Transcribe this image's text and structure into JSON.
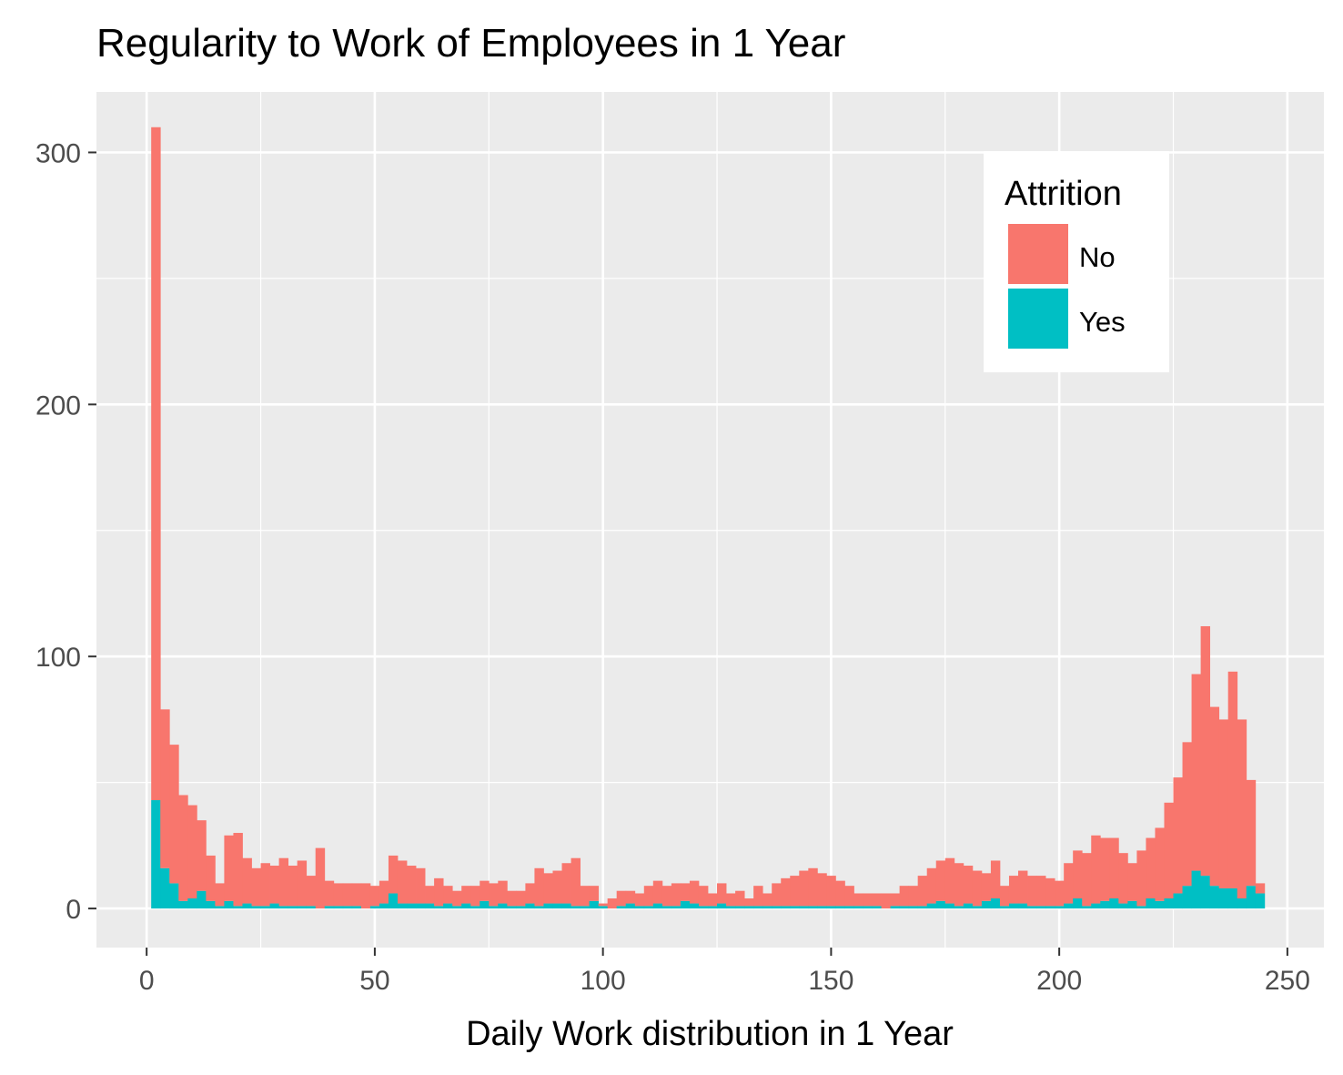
{
  "chart_data": {
    "type": "bar",
    "subtype": "stacked-histogram",
    "title": "Regularity to Work of Employees in 1 Year",
    "xlabel": "Daily Work distribution in 1 Year",
    "ylabel": "",
    "xlim": [
      -11,
      258
    ],
    "ylim": [
      -15.5,
      324
    ],
    "x_ticks": [
      0,
      50,
      100,
      150,
      200,
      250
    ],
    "y_ticks": [
      0,
      100,
      200,
      300
    ],
    "grid": true,
    "legend": {
      "title": "Attrition",
      "position": "top-right",
      "entries": [
        "No",
        "Yes"
      ]
    },
    "colors": {
      "No": "#F8766D",
      "Yes": "#00BFC4",
      "panel": "#EBEBEB",
      "grid": "#FFFFFF"
    },
    "bin_width": 2,
    "bins_start": [
      1,
      3,
      5,
      7,
      9,
      11,
      13,
      15,
      17,
      19,
      21,
      23,
      25,
      27,
      29,
      31,
      33,
      35,
      37,
      39,
      41,
      43,
      45,
      47,
      49,
      51,
      53,
      55,
      57,
      59,
      61,
      63,
      65,
      67,
      69,
      71,
      73,
      75,
      77,
      79,
      81,
      83,
      85,
      87,
      89,
      91,
      93,
      95,
      97,
      99,
      101,
      103,
      105,
      107,
      109,
      111,
      113,
      115,
      117,
      119,
      121,
      123,
      125,
      127,
      129,
      131,
      133,
      135,
      137,
      139,
      141,
      143,
      145,
      147,
      149,
      151,
      153,
      155,
      157,
      159,
      161,
      163,
      165,
      167,
      169,
      171,
      173,
      175,
      177,
      179,
      181,
      183,
      185,
      187,
      189,
      191,
      193,
      195,
      197,
      199,
      201,
      203,
      205,
      207,
      209,
      211,
      213,
      215,
      217,
      219,
      221,
      223,
      225,
      227,
      229,
      231,
      233,
      235,
      237,
      239,
      241,
      243
    ],
    "series": [
      {
        "name": "Yes",
        "values": [
          43,
          16,
          10,
          3,
          4,
          7,
          3,
          1,
          3,
          1,
          2,
          1,
          1,
          2,
          1,
          1,
          1,
          1,
          0,
          1,
          1,
          1,
          1,
          0,
          1,
          2,
          6,
          2,
          2,
          2,
          2,
          1,
          2,
          1,
          2,
          1,
          3,
          1,
          2,
          1,
          1,
          2,
          1,
          2,
          2,
          2,
          1,
          1,
          3,
          1,
          0,
          1,
          2,
          1,
          1,
          2,
          1,
          1,
          3,
          2,
          1,
          1,
          2,
          1,
          1,
          1,
          1,
          1,
          1,
          1,
          1,
          1,
          1,
          1,
          1,
          1,
          1,
          1,
          1,
          1,
          0,
          1,
          1,
          1,
          1,
          2,
          3,
          2,
          1,
          2,
          1,
          3,
          4,
          1,
          2,
          2,
          1,
          1,
          1,
          1,
          2,
          4,
          1,
          2,
          3,
          4,
          2,
          3,
          1,
          4,
          3,
          4,
          6,
          9,
          15,
          13,
          9,
          8,
          8,
          4,
          9,
          6
        ]
      },
      {
        "name": "No",
        "values": [
          267,
          63,
          55,
          42,
          37,
          28,
          18,
          9,
          26,
          29,
          18,
          15,
          17,
          15,
          19,
          16,
          18,
          12,
          24,
          10,
          9,
          9,
          9,
          10,
          8,
          9,
          15,
          17,
          15,
          14,
          7,
          11,
          7,
          6,
          7,
          8,
          8,
          9,
          9,
          6,
          6,
          8,
          15,
          12,
          13,
          16,
          19,
          8,
          6,
          1,
          4,
          6,
          5,
          5,
          8,
          9,
          8,
          9,
          7,
          9,
          8,
          5,
          8,
          5,
          6,
          3,
          8,
          5,
          9,
          11,
          12,
          14,
          15,
          13,
          12,
          10,
          8,
          5,
          5,
          5,
          6,
          5,
          8,
          8,
          12,
          14,
          16,
          18,
          17,
          15,
          14,
          11,
          15,
          8,
          11,
          13,
          12,
          12,
          11,
          10,
          16,
          19,
          21,
          27,
          25,
          24,
          20,
          15,
          22,
          24,
          29,
          38,
          46,
          57,
          78,
          99,
          71,
          67,
          86,
          71,
          42,
          4
        ]
      }
    ]
  }
}
